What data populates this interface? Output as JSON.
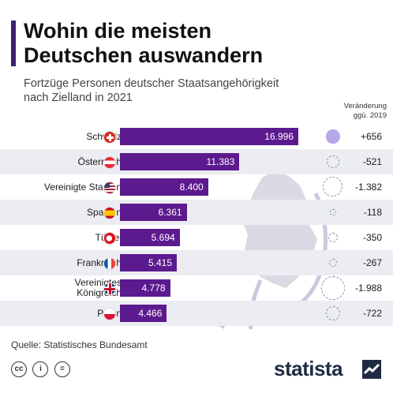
{
  "header": {
    "title_line1": "Wohin die meisten",
    "title_line2": "Deutschen auswandern",
    "subtitle_line1": "Fortzüge Personen deutscher Staatsangehörigkeit",
    "subtitle_line2": "nach Zielland in 2021",
    "change_header_line1": "Veränderung",
    "change_header_line2": "ggü. 2019"
  },
  "chart_data": {
    "type": "bar",
    "orientation": "horizontal",
    "title": "Wohin die meisten Deutschen auswandern",
    "subtitle": "Fortzüge Personen deutscher Staatsangehörigkeit nach Zielland in 2021",
    "categories": [
      "Schweiz",
      "Österreich",
      "Vereinigte Staaten",
      "Spanien",
      "Türkei",
      "Frankreich",
      "Vereinigtes Königreich",
      "Polen"
    ],
    "category_labels": [
      [
        "Schweiz"
      ],
      [
        "Österreich"
      ],
      [
        "Vereinigte Staaten"
      ],
      [
        "Spanien"
      ],
      [
        "Türkei"
      ],
      [
        "Frankreich"
      ],
      [
        "Vereinigtes",
        "Königreich"
      ],
      [
        "Polen"
      ]
    ],
    "values": [
      16996,
      11383,
      8400,
      6361,
      5694,
      5415,
      4778,
      4466
    ],
    "value_labels": [
      "16.996",
      "11.383",
      "8.400",
      "6.361",
      "5.694",
      "5.415",
      "4.778",
      "4.466"
    ],
    "change_values": [
      656,
      -521,
      -1382,
      -118,
      -350,
      -267,
      -1988,
      -722
    ],
    "change_labels": [
      "+656",
      "-521",
      "-1.382",
      "-118",
      "-350",
      "-267",
      "-1.988",
      "-722"
    ],
    "flags": [
      "switzerland-flag",
      "austria-flag",
      "usa-flag",
      "spain-flag",
      "turkey-flag",
      "france-flag",
      "uk-flag",
      "poland-flag"
    ],
    "xlim": [
      0,
      16996
    ],
    "grid": false,
    "colors": {
      "bar": "#5c1a8f",
      "positive_bubble": "#b7a6ec",
      "negative_bubble_outline": "#8893a8",
      "accent": "#3d1f6e"
    }
  },
  "footer": {
    "source": "Quelle: Statistisches Bundesamt",
    "logo_text": "statista",
    "license_icons": [
      "cc-icon",
      "by-icon",
      "nd-icon"
    ],
    "license_glyphs": [
      "cc",
      "i",
      "="
    ]
  }
}
